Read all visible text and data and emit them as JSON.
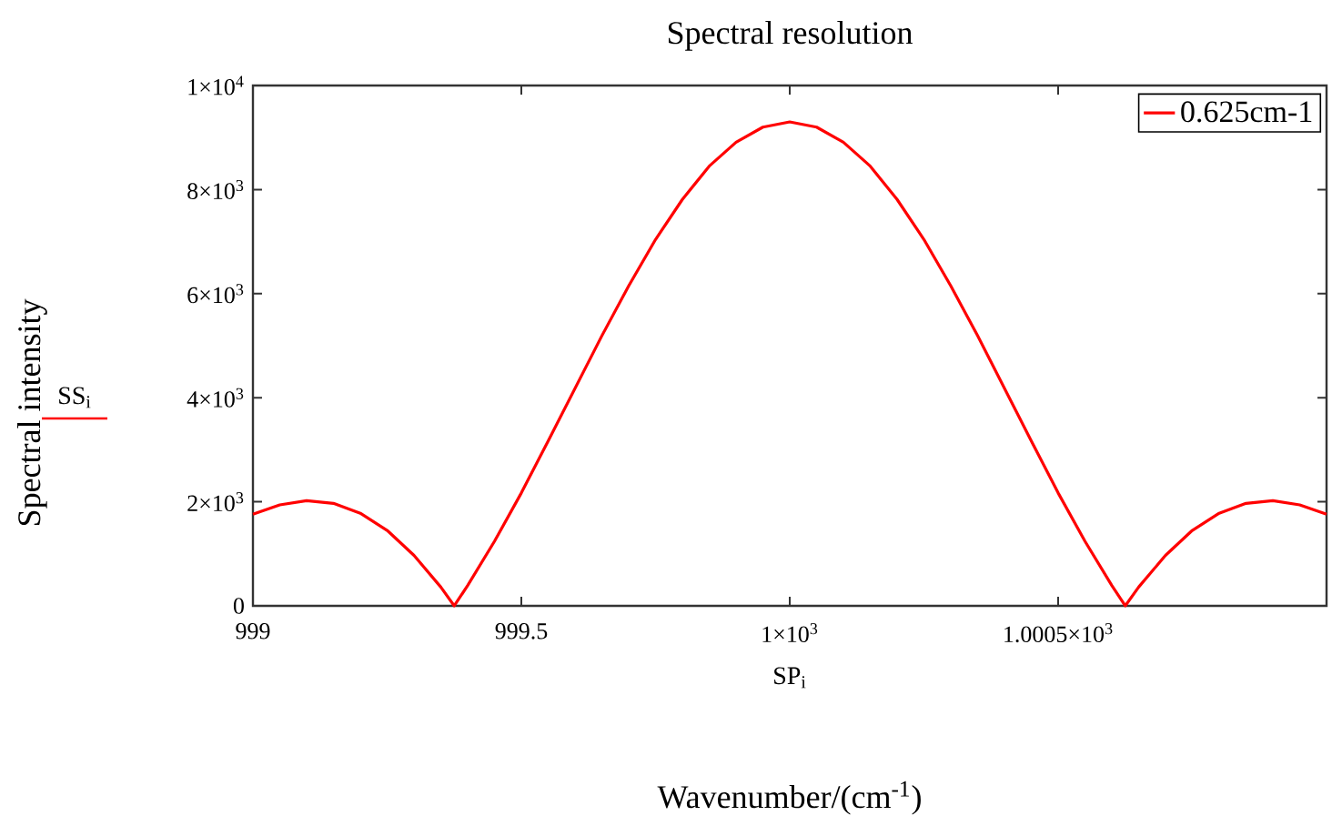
{
  "chart_data": {
    "type": "line",
    "title": "Spectral resolution",
    "xlabel": "Wavenumber/(cm$^{-1}$)",
    "ylabel": "Spectral intensity",
    "annotations": [
      "SS$_{i}$",
      "SP$_{i}$"
    ],
    "x": [
      999,
      999.05,
      999.1,
      999.15,
      999.2,
      999.25,
      999.3,
      999.35,
      999.375,
      999.4,
      999.45,
      999.5,
      999.55,
      999.6,
      999.65,
      999.7,
      999.75,
      999.8,
      999.85,
      999.9,
      999.95,
      1000,
      1000.05,
      1000.1,
      1000.15,
      1000.2,
      1000.25,
      1000.3,
      1000.35,
      1000.4,
      1000.45,
      1000.5,
      1000.55,
      1000.6,
      1000.625,
      1000.65,
      1000.7,
      1000.75,
      1000.8,
      1000.85,
      1000.9,
      1000.95,
      1001
    ],
    "series": [
      {
        "name": "0.625cm-1",
        "color": "#ff0000",
        "values": [
          1760,
          1940,
          2020,
          1970,
          1780,
          1450,
          970,
          360,
          0,
          390,
          1240,
          2170,
          3170,
          4180,
          5190,
          6150,
          7040,
          7810,
          8450,
          8910,
          9200,
          9300,
          9200,
          8910,
          8450,
          7810,
          7040,
          6150,
          5190,
          4180,
          3170,
          2170,
          1240,
          390,
          0,
          360,
          970,
          1450,
          1780,
          1970,
          2020,
          1940,
          1760
        ]
      }
    ],
    "xlim": [
      999,
      1001
    ],
    "xticks": [
      999,
      999.5,
      {
        "value": 1000,
        "label": "1×10$^{3}$"
      },
      {
        "value": 1000.5,
        "label": "1.0005×10$^{3}$"
      }
    ],
    "ylim": [
      0,
      10000
    ],
    "yticks": [
      0,
      {
        "value": 2000,
        "label": "2×10$^{3}$"
      },
      {
        "value": 4000,
        "label": "4×10$^{3}$"
      },
      {
        "value": 6000,
        "label": "6×10$^{3}$"
      },
      {
        "value": 8000,
        "label": "8×10$^{3}$"
      },
      {
        "value": 10000,
        "label": "1×10$^{4}$"
      }
    ],
    "grid": false,
    "legend": "top right",
    "marker": "none",
    "line_style": "solid"
  }
}
